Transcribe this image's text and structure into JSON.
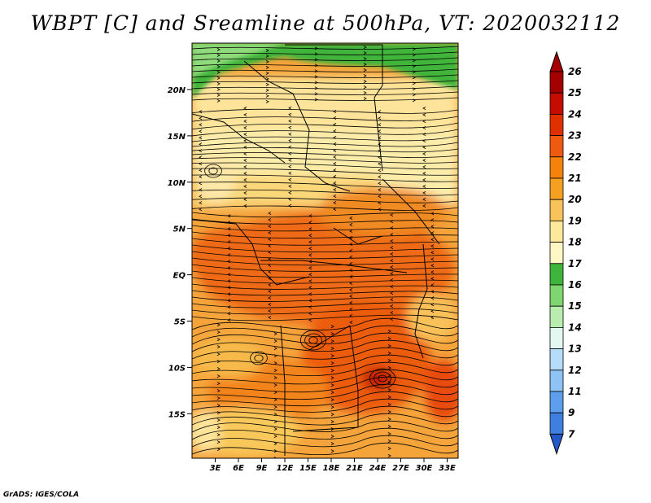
{
  "title": "WBPT [C] and Sreamline at 500hPa, VT: 2020032112",
  "credit": "GrADS: IGES/COLA",
  "map": {
    "lat_labels": [
      "20N",
      "15N",
      "10N",
      "5N",
      "EQ",
      "5S",
      "10S",
      "15S"
    ],
    "lon_labels": [
      "3E",
      "6E",
      "9E",
      "12E",
      "15E",
      "18E",
      "21E",
      "24E",
      "27E",
      "30E",
      "33E"
    ]
  },
  "colorbar": {
    "labels": [
      "26",
      "25",
      "24",
      "23",
      "22",
      "21",
      "20",
      "19",
      "18",
      "17",
      "16",
      "15",
      "14",
      "13",
      "12",
      "11",
      "9",
      "7"
    ],
    "colors": [
      "#a50000",
      "#c40c00",
      "#e03000",
      "#f05a10",
      "#f5820a",
      "#f5a020",
      "#f8c45a",
      "#fde79b",
      "#fdf7c6",
      "#3fb43a",
      "#7fd56f",
      "#b9ecae",
      "#e4f8f2",
      "#b5dcfb",
      "#8fc3f5",
      "#5d9fec",
      "#3f7fe0",
      "#2358c8"
    ]
  }
}
